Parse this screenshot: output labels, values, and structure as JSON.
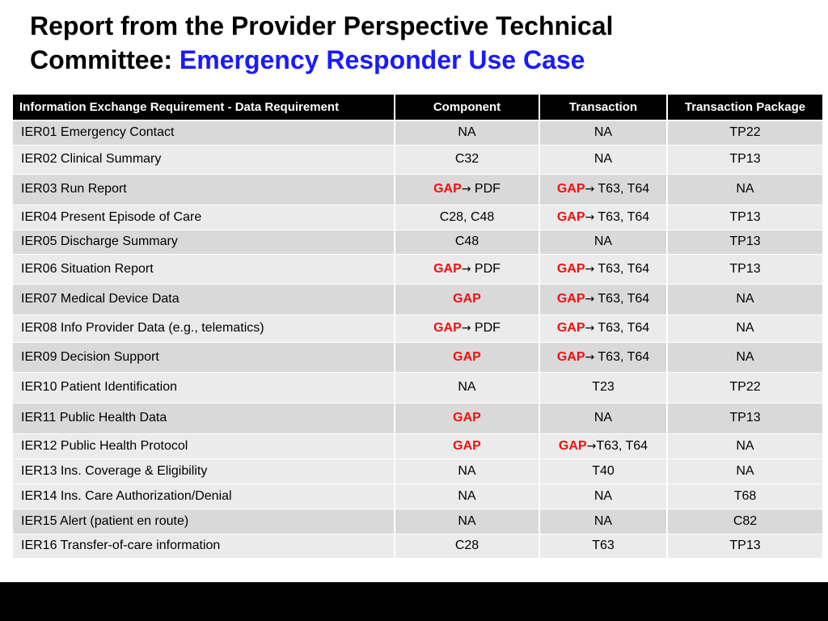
{
  "title": {
    "line1": "Report from the Provider Perspective Technical",
    "line2_prefix": "Committee: ",
    "line2_accent": "Emergency Responder Use Case",
    "accent_color": "#1a1aff"
  },
  "table": {
    "headers": [
      "Information Exchange Requirement - Data Requirement",
      "Component",
      "Transaction",
      "Transaction Package"
    ],
    "gap_color": "#ee1111",
    "arrow_icon": "right-arrow-icon",
    "rows": [
      {
        "ier": "IER01 Emergency Contact",
        "component": {
          "gap": false,
          "text": "NA"
        },
        "transaction": {
          "gap": false,
          "text": "NA"
        },
        "package": "TP22"
      },
      {
        "ier": "IER02 Clinical Summary",
        "component": {
          "gap": false,
          "text": "C32"
        },
        "transaction": {
          "gap": false,
          "text": "NA"
        },
        "package": "TP13"
      },
      {
        "ier": "IER03 Run Report",
        "component": {
          "gap": true,
          "gap_label": "GAP",
          "arrow": true,
          "text": " PDF"
        },
        "transaction": {
          "gap": true,
          "gap_label": "GAP",
          "arrow": true,
          "text": " T63, T64"
        },
        "package": "NA"
      },
      {
        "ier": "IER04 Present Episode of Care",
        "component": {
          "gap": false,
          "text": "C28, C48"
        },
        "transaction": {
          "gap": true,
          "gap_label": "GAP",
          "arrow": true,
          "text": " T63, T64"
        },
        "package": "TP13"
      },
      {
        "ier": "IER05 Discharge Summary",
        "component": {
          "gap": false,
          "text": "C48"
        },
        "transaction": {
          "gap": false,
          "text": "NA"
        },
        "package": "TP13"
      },
      {
        "ier": "IER06 Situation Report",
        "component": {
          "gap": true,
          "gap_label": "GAP",
          "arrow": true,
          "text": " PDF"
        },
        "transaction": {
          "gap": true,
          "gap_label": "GAP",
          "arrow": true,
          "text": " T63, T64"
        },
        "package": "TP13"
      },
      {
        "ier": "IER07 Medical Device Data",
        "component": {
          "gap": true,
          "gap_label": "GAP",
          "arrow": false,
          "text": ""
        },
        "transaction": {
          "gap": true,
          "gap_label": "GAP",
          "arrow": true,
          "text": " T63, T64"
        },
        "package": "NA"
      },
      {
        "ier": "IER08 Info Provider Data (e.g., telematics)",
        "component": {
          "gap": true,
          "gap_label": "GAP",
          "arrow": true,
          "text": " PDF"
        },
        "transaction": {
          "gap": true,
          "gap_label": "GAP",
          "arrow": true,
          "text": " T63, T64"
        },
        "package": "NA"
      },
      {
        "ier": "IER09 Decision Support",
        "component": {
          "gap": true,
          "gap_label": "GAP",
          "arrow": false,
          "text": ""
        },
        "transaction": {
          "gap": true,
          "gap_label": "GAP",
          "arrow": true,
          "text": " T63, T64"
        },
        "package": "NA"
      },
      {
        "ier": "IER10 Patient Identification",
        "component": {
          "gap": false,
          "text": "NA"
        },
        "transaction": {
          "gap": false,
          "text": "T23"
        },
        "package": "TP22"
      },
      {
        "ier": "IER11 Public Health Data",
        "component": {
          "gap": true,
          "gap_label": "GAP",
          "arrow": false,
          "text": ""
        },
        "transaction": {
          "gap": false,
          "text": "NA"
        },
        "package": "TP13"
      },
      {
        "ier": "IER12 Public Health Protocol",
        "component": {
          "gap": true,
          "gap_label": "GAP",
          "arrow": false,
          "text": ""
        },
        "transaction": {
          "gap": true,
          "gap_label": "GAP",
          "arrow": true,
          "text": "T63, T64"
        },
        "package": "NA"
      },
      {
        "ier": "IER13 Ins. Coverage & Eligibility",
        "component": {
          "gap": false,
          "text": "NA"
        },
        "transaction": {
          "gap": false,
          "text": "T40"
        },
        "package": "NA"
      },
      {
        "ier": "IER14 Ins. Care Authorization/Denial",
        "component": {
          "gap": false,
          "text": "NA"
        },
        "transaction": {
          "gap": false,
          "text": "NA"
        },
        "package": "T68"
      },
      {
        "ier": "IER15 Alert (patient  en route)",
        "component": {
          "gap": false,
          "text": "NA"
        },
        "transaction": {
          "gap": false,
          "text": "NA"
        },
        "package": "C82"
      },
      {
        "ier": "IER16 Transfer-of-care information",
        "component": {
          "gap": false,
          "text": "C28"
        },
        "transaction": {
          "gap": false,
          "text": "T63"
        },
        "package": "TP13"
      }
    ]
  }
}
